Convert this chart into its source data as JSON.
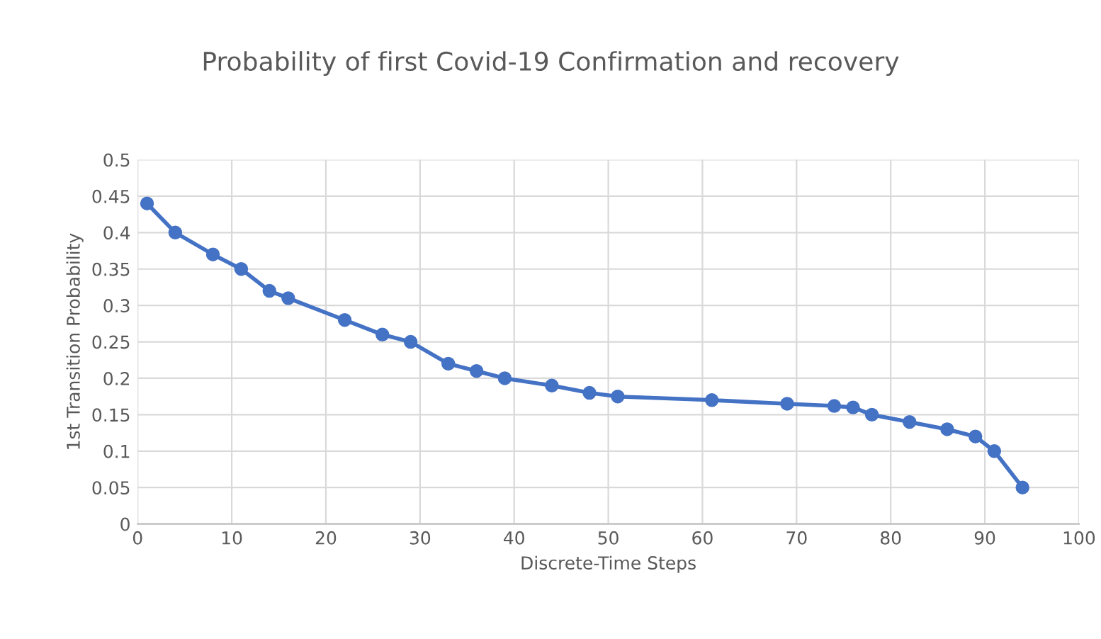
{
  "chart_data": {
    "type": "line",
    "title": "Probability of first Covid-19 Confirmation and recovery",
    "xlabel": "Discrete-Time Steps",
    "ylabel": "1st Transition Probability",
    "x": [
      1,
      4,
      8,
      11,
      14,
      16,
      22,
      26,
      29,
      33,
      36,
      39,
      44,
      48,
      51,
      61,
      69,
      74,
      76,
      78,
      82,
      86,
      89,
      91,
      94
    ],
    "series": [
      {
        "color": "#4472c4",
        "values": [
          0.44,
          0.4,
          0.37,
          0.35,
          0.32,
          0.31,
          0.28,
          0.26,
          0.25,
          0.22,
          0.21,
          0.2,
          0.19,
          0.18,
          0.175,
          0.17,
          0.165,
          0.162,
          0.16,
          0.15,
          0.14,
          0.13,
          0.12,
          0.1,
          0.05
        ]
      }
    ],
    "xlim": [
      0,
      100
    ],
    "xticks": [
      0,
      10,
      20,
      30,
      40,
      50,
      60,
      70,
      80,
      90,
      100
    ],
    "ylim": [
      0,
      0.5
    ],
    "yticks": [
      0,
      0.05,
      0.1,
      0.15,
      0.2,
      0.25,
      0.3,
      0.35,
      0.4,
      0.45,
      0.5
    ],
    "grid": true,
    "marker": "circle",
    "line_style": "solid"
  }
}
